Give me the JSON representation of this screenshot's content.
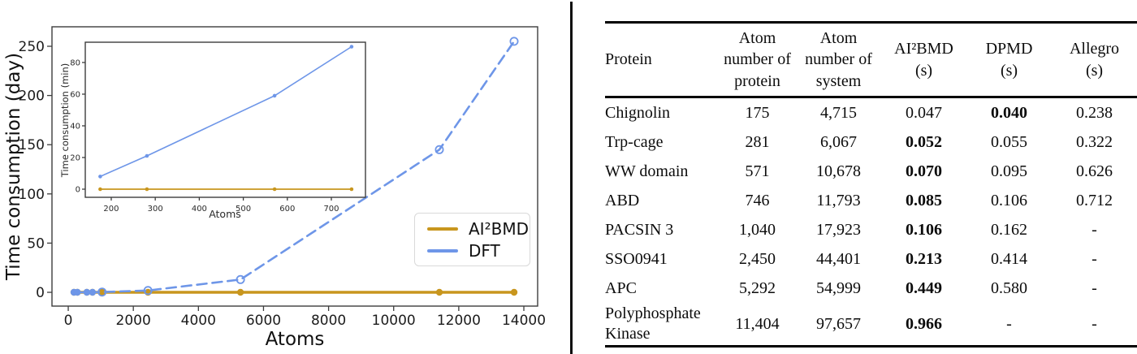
{
  "figure": {
    "divider_color": "#0d0d0d",
    "table_rule_color": "#000000",
    "axis_color": "#3d3d3d"
  },
  "chart_data": [
    {
      "id": "main",
      "type": "line",
      "title": "",
      "xlabel": "Atoms",
      "ylabel": "Time consumption (day)",
      "xlim": [
        -500,
        14424
      ],
      "ylim": [
        -14,
        270
      ],
      "xticks": [
        0,
        2000,
        4000,
        6000,
        8000,
        10000,
        12000,
        14000
      ],
      "yticks": [
        0,
        50,
        100,
        150,
        200,
        250
      ],
      "grid": false,
      "legend_position": "center-right",
      "series": [
        {
          "name": "AI²BMD",
          "color": "#C8961E",
          "line_style": "solid",
          "marker": "filled-circle",
          "x": [
            175,
            281,
            571,
            746,
            1040,
            2450,
            5292,
            11404,
            13700
          ],
          "y": [
            0,
            0,
            0,
            0,
            0,
            0,
            0,
            0,
            0
          ]
        },
        {
          "name": "DFT",
          "color": "#6E96E8",
          "line_style": "dashed",
          "marker": "circle",
          "open_from": 4,
          "x": [
            175,
            281,
            571,
            746,
            1040,
            2450,
            5292,
            11404,
            13700
          ],
          "y": [
            0.006,
            0.015,
            0.041,
            0.063,
            0.3,
            1.8,
            13,
            145,
            255
          ]
        }
      ]
    },
    {
      "id": "inset",
      "type": "line",
      "title": "",
      "xlabel": "Atoms",
      "ylabel": "Time consumption (min)",
      "xlim": [
        141,
        778
      ],
      "ylim": [
        -5,
        93
      ],
      "xticks": [
        200,
        300,
        400,
        500,
        600,
        700
      ],
      "yticks": [
        0,
        20,
        40,
        60,
        80
      ],
      "grid": false,
      "series": [
        {
          "name": "AI²BMD",
          "color": "#C8961E",
          "line_style": "solid",
          "marker": "filled-circle",
          "x": [
            175,
            281,
            571,
            746
          ],
          "y": [
            0,
            0,
            0,
            0
          ]
        },
        {
          "name": "DFT",
          "color": "#6E96E8",
          "line_style": "solid",
          "marker": "filled-circle",
          "x": [
            175,
            281,
            571,
            746
          ],
          "y": [
            8,
            21,
            59,
            90
          ]
        }
      ]
    }
  ],
  "table": {
    "columns": [
      {
        "key": "protein",
        "header": "Protein",
        "align": "left"
      },
      {
        "key": "protein_atoms",
        "header": "Atom\nnumber of\nprotein",
        "align": "center"
      },
      {
        "key": "system_atoms",
        "header": "Atom\nnumber of\nsystem",
        "align": "center"
      },
      {
        "key": "ai2bmd",
        "header": "AI²BMD\n(s)",
        "align": "center"
      },
      {
        "key": "dpmd",
        "header": "DPMD\n(s)",
        "align": "center"
      },
      {
        "key": "allegro",
        "header": "Allegro\n(s)",
        "align": "center"
      }
    ],
    "rows": [
      {
        "protein": "Chignolin",
        "protein_atoms": "175",
        "system_atoms": "4,715",
        "ai2bmd": "0.047",
        "dpmd": "0.040",
        "allegro": "0.238",
        "bold": [
          "dpmd"
        ]
      },
      {
        "protein": "Trp-cage",
        "protein_atoms": "281",
        "system_atoms": "6,067",
        "ai2bmd": "0.052",
        "dpmd": "0.055",
        "allegro": "0.322",
        "bold": [
          "ai2bmd"
        ]
      },
      {
        "protein": "WW domain",
        "protein_atoms": "571",
        "system_atoms": "10,678",
        "ai2bmd": "0.070",
        "dpmd": "0.095",
        "allegro": "0.626",
        "bold": [
          "ai2bmd"
        ]
      },
      {
        "protein": "ABD",
        "protein_atoms": "746",
        "system_atoms": "11,793",
        "ai2bmd": "0.085",
        "dpmd": "0.106",
        "allegro": "0.712",
        "bold": [
          "ai2bmd"
        ]
      },
      {
        "protein": "PACSIN 3",
        "protein_atoms": "1,040",
        "system_atoms": "17,923",
        "ai2bmd": "0.106",
        "dpmd": "0.162",
        "allegro": "-",
        "bold": [
          "ai2bmd"
        ]
      },
      {
        "protein": "SSO0941",
        "protein_atoms": "2,450",
        "system_atoms": "44,401",
        "ai2bmd": "0.213",
        "dpmd": "0.414",
        "allegro": "-",
        "bold": [
          "ai2bmd"
        ]
      },
      {
        "protein": "APC",
        "protein_atoms": "5,292",
        "system_atoms": "54,999",
        "ai2bmd": "0.449",
        "dpmd": "0.580",
        "allegro": "-",
        "bold": [
          "ai2bmd"
        ]
      },
      {
        "protein": "Polyphosphate Kinase",
        "protein_atoms": "11,404",
        "system_atoms": "97,657",
        "ai2bmd": "0.966",
        "dpmd": "-",
        "allegro": "-",
        "bold": [
          "ai2bmd"
        ]
      }
    ]
  }
}
